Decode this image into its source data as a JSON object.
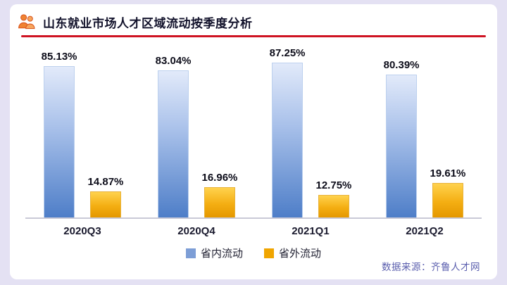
{
  "header": {
    "title": "山东就业市场人才区域流动按季度分析",
    "icon": "people-icon"
  },
  "chart_data": {
    "type": "bar",
    "title": "山东就业市场人才区域流动按季度分析",
    "categories": [
      "2020Q3",
      "2020Q4",
      "2021Q1",
      "2021Q2"
    ],
    "series": [
      {
        "name": "省内流动",
        "color": "#7d9ed6",
        "values": [
          85.13,
          83.04,
          87.25,
          80.39
        ]
      },
      {
        "name": "省外流动",
        "color": "#f0a500",
        "values": [
          14.87,
          16.96,
          12.75,
          19.61
        ]
      }
    ],
    "value_suffix": "%",
    "ylim": [
      0,
      100
    ],
    "grid": false,
    "legend_position": "bottom",
    "data_labels": true
  },
  "footer": {
    "source": "数据来源：齐鲁人才网"
  },
  "colors": {
    "background": "#e4e1f3",
    "card": "#ffffff",
    "title_underline": "#cf1322",
    "bar_blue_top": "#e2eafa",
    "bar_blue_bottom": "#4e7ec8",
    "bar_orange_top": "#ffd24d",
    "bar_orange_bottom": "#e49700",
    "source_text": "#5b5fae",
    "icon_orange": "#ef8332"
  }
}
